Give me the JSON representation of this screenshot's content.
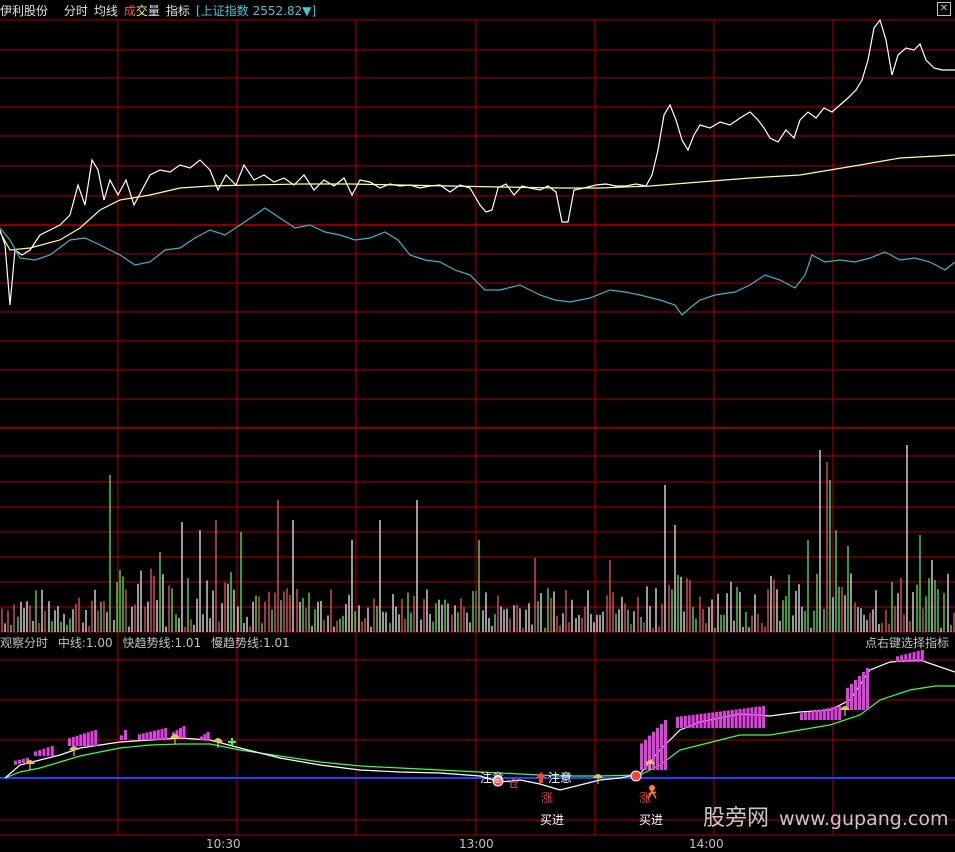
{
  "header": {
    "stock_name": "伊利股份",
    "tab_intraday": "分时",
    "tab_avg": "均线",
    "tab_volume_a": "成",
    "tab_volume_b": "交",
    "tab_volume_c": "量",
    "tab_indicator": "指标",
    "index_label": "[上证指数",
    "index_value": "2552.82▼]",
    "close_glyph": "✕"
  },
  "indicator_bar": {
    "name": "观察分时",
    "mid_line": "中线:1.00",
    "fast_line": "快趋势线:1.01",
    "slow_line": "慢趋势线:1.01",
    "right_hint": "点右键选择指标"
  },
  "x_ticks": [
    "10:30",
    "13:00",
    "14:00"
  ],
  "signals": {
    "attention_1": "注意",
    "attention_2": "注意",
    "cang": "仓",
    "buy_1": "买进",
    "buy_2": "买进",
    "zhang_1": "涨",
    "zhang_2": "涨"
  },
  "watermark": {
    "cn": "股旁网",
    "url": "www.gupang.com"
  },
  "colors": {
    "grid": "#b00000",
    "price": "#ffffff",
    "avg": "#ffff99",
    "index": "#3cb4c8",
    "vol_up": "#ff6060",
    "vol_down": "#60ff60",
    "vol_flat": "#ffffff",
    "bar_magenta": "#e040e0",
    "fast_line": "#40ff40",
    "zero_line": "#2040ff"
  }
}
